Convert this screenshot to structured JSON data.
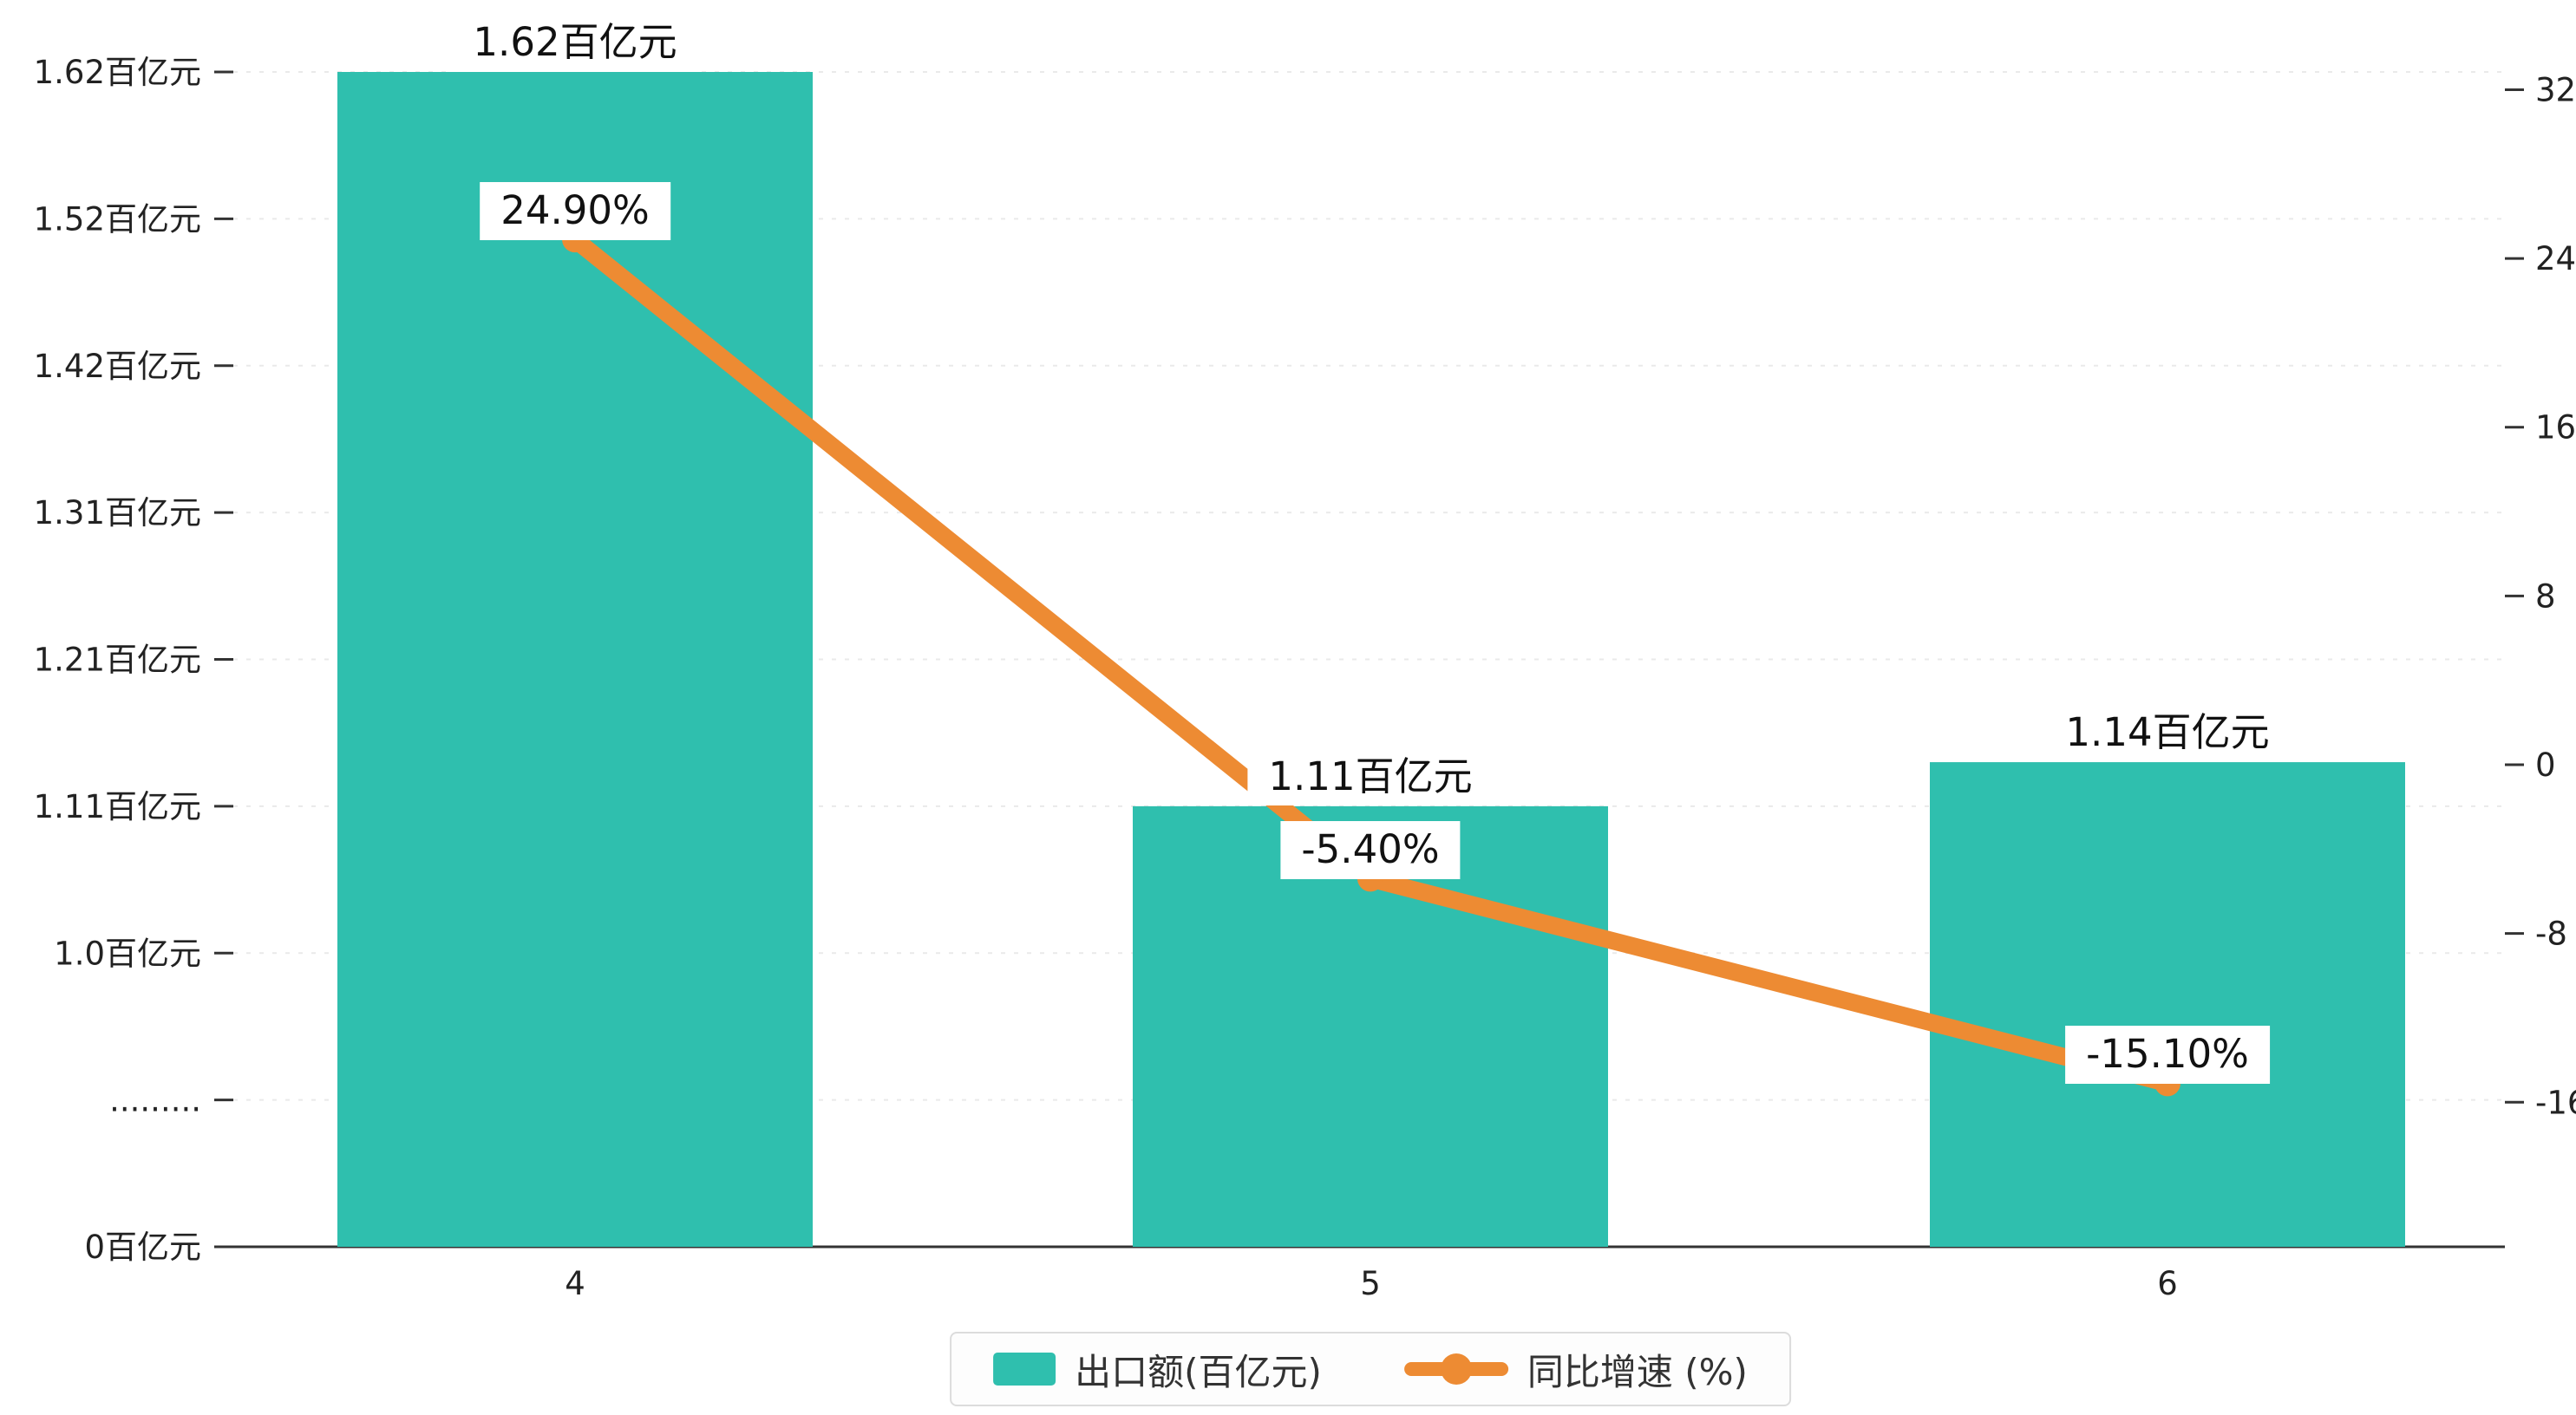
{
  "chart_data": {
    "type": "bar+line",
    "title": "",
    "categories": [
      "4",
      "5",
      "6"
    ],
    "series": [
      {
        "name": "出口额(百亿元)",
        "type": "bar",
        "values": [
          1.62,
          1.11,
          1.14
        ],
        "labels": [
          "1.62百亿元",
          "1.11百亿元",
          "1.14百亿元"
        ],
        "color": "#2fbfae"
      },
      {
        "name": "同比增速 (%)",
        "type": "line",
        "values": [
          24.9,
          -5.4,
          -15.1
        ],
        "labels": [
          "24.90%",
          "-5.40%",
          "-15.10%"
        ],
        "color": "#ed8b33"
      }
    ],
    "left_axis": {
      "ticks": [
        "1.62百亿元",
        "1.52百亿元",
        "1.42百亿元",
        "1.31百亿元",
        "1.21百亿元",
        "1.11百亿元",
        "1.0百亿元",
        ".........",
        "0百亿元"
      ],
      "values": [
        1.62,
        1.52,
        1.42,
        1.31,
        1.21,
        1.11,
        1.0,
        null,
        0
      ],
      "has_break": true
    },
    "right_axis": {
      "ticks": [
        "32",
        "24",
        "16",
        "8",
        "0",
        "-8",
        "-16"
      ],
      "values": [
        32,
        24,
        16,
        8,
        0,
        -8,
        -16
      ]
    },
    "x_axis": {
      "ticks": [
        "4",
        "5",
        "6"
      ]
    },
    "legend": {
      "items": [
        {
          "label": "出口额(百亿元)",
          "color": "#2fbfae",
          "marker": "bar-swatch"
        },
        {
          "label": "同比增速 (%)",
          "color": "#ed8b33",
          "marker": "line-with-dot"
        }
      ],
      "position": "bottom-center"
    },
    "grid": true,
    "background": "#ffffff",
    "text_color": "#222222",
    "gridline_color": "#eaeaea"
  }
}
